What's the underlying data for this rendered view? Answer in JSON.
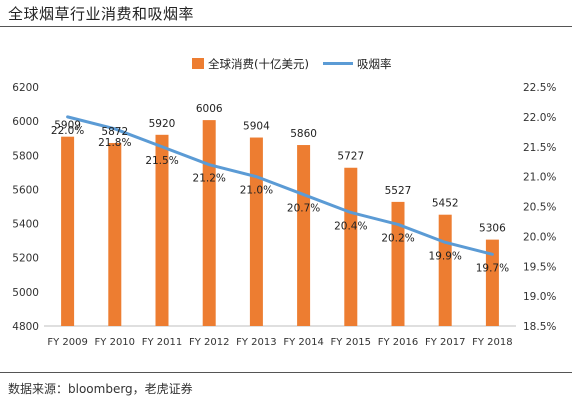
{
  "title": "全球烟草行业消费和吸烟率",
  "source": "数据来源：bloomberg，老虎证券",
  "chart_data": {
    "type": "bar",
    "categories": [
      "FY 2009",
      "FY 2010",
      "FY 2011",
      "FY 2012",
      "FY 2013",
      "FY 2014",
      "FY 2015",
      "FY 2016",
      "FY 2017",
      "FY 2018"
    ],
    "series": [
      {
        "name": "全球消费(十亿美元)",
        "type": "bar",
        "axis": "left",
        "color": "#ED7D31",
        "values": [
          5909,
          5872,
          5920,
          6006,
          5904,
          5860,
          5727,
          5527,
          5452,
          5306
        ],
        "labels": [
          "5909",
          "5872",
          "5920",
          "6006",
          "5904",
          "5860",
          "5727",
          "5527",
          "5452",
          "5306"
        ]
      },
      {
        "name": "吸烟率",
        "type": "line",
        "axis": "right",
        "color": "#5B9BD5",
        "values": [
          22.0,
          21.8,
          21.5,
          21.2,
          21.0,
          20.7,
          20.4,
          20.2,
          19.9,
          19.7
        ],
        "labels": [
          "22.0%",
          "21.8%",
          "21.5%",
          "21.2%",
          "21.0%",
          "20.7%",
          "20.4%",
          "20.2%",
          "19.9%",
          "19.7%"
        ]
      }
    ],
    "y_left": {
      "min": 4800,
      "max": 6200,
      "ticks": [
        "4800",
        "5000",
        "5200",
        "5400",
        "5600",
        "5800",
        "6000",
        "6200"
      ]
    },
    "y_right": {
      "min": 18.5,
      "max": 22.5,
      "ticks": [
        "18.5%",
        "19.0%",
        "19.5%",
        "20.0%",
        "20.5%",
        "21.0%",
        "21.5%",
        "22.0%",
        "22.5%"
      ]
    },
    "legend_position": "top",
    "grid": false
  }
}
